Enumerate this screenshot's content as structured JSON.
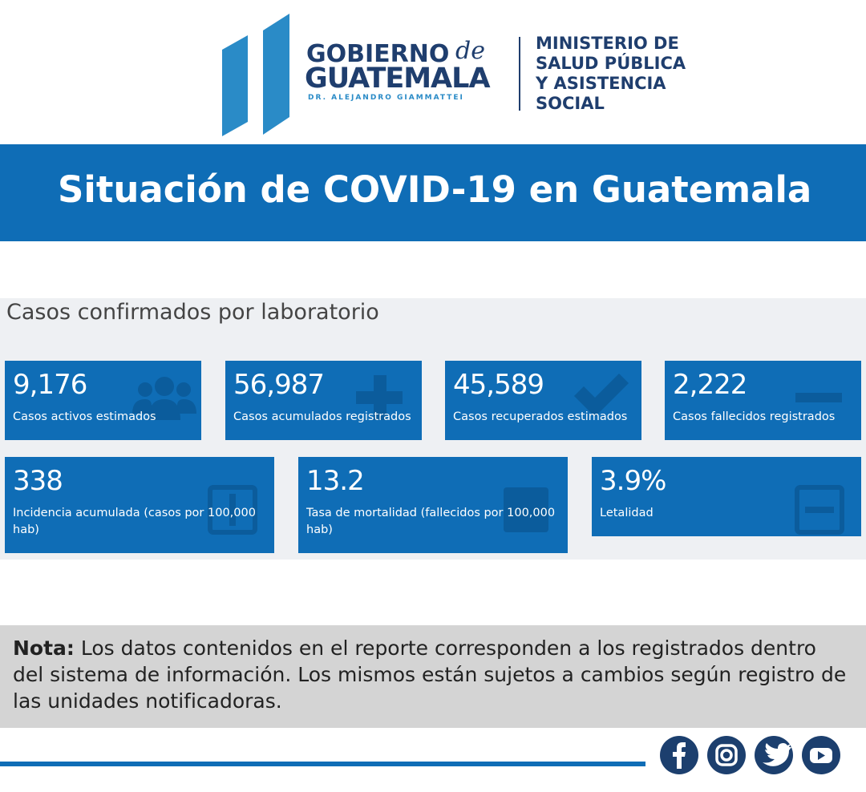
{
  "header": {
    "gobierno": "GOBIERNO",
    "de": "de",
    "guatemala": "GUATEMALA",
    "president": "DR. ALEJANDRO GIAMMATTEI",
    "ministry": [
      "MINISTERIO DE",
      "SALUD PÚBLICA",
      "Y ASISTENCIA",
      "SOCIAL"
    ]
  },
  "banner": {
    "title": "Situación de COVID-19 en Guatemala"
  },
  "section": {
    "title": "Casos confirmados por laboratorio",
    "cards": [
      {
        "value": "9,176",
        "label": "Casos activos estimados"
      },
      {
        "value": "56,987",
        "label": "Casos acumulados registrados"
      },
      {
        "value": "45,589",
        "label": "Casos recuperados estimados"
      },
      {
        "value": "2,222",
        "label": "Casos fallecidos registrados"
      },
      {
        "value": "338",
        "label": "Incidencia acumulada (casos por 100,000 hab)"
      },
      {
        "value": "13.2",
        "label": "Tasa de mortalidad (fallecidos por 100,000 hab)"
      },
      {
        "value": "3.9%",
        "label": "Letalidad"
      }
    ]
  },
  "note": {
    "bold": "Nota:",
    "text": "Los datos contenidos en el reporte corresponden a los registrados dentro del sistema de información. Los mismos están sujetos a cambios según registro de las unidades notificadoras."
  }
}
